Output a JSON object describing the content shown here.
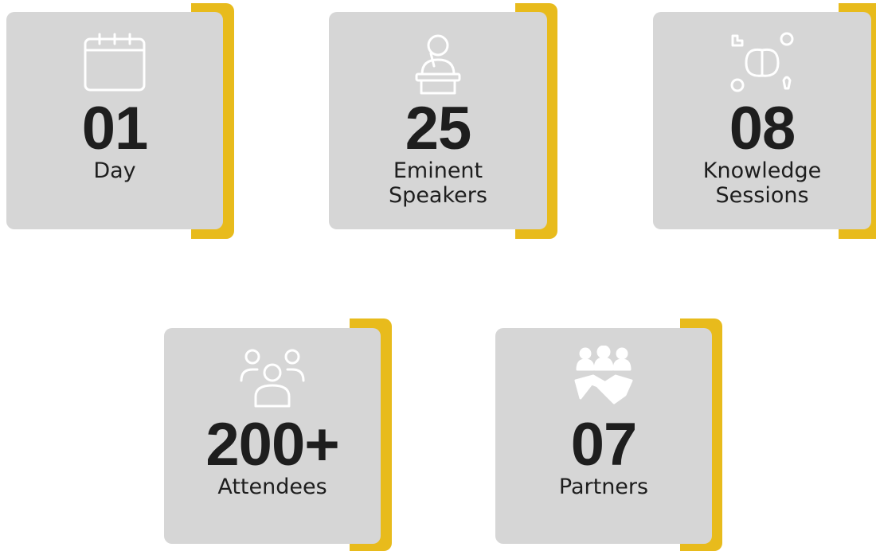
{
  "stats": [
    {
      "value": "01",
      "label": "Day"
    },
    {
      "value": "25",
      "label": "Eminent Speakers"
    },
    {
      "value": "08",
      "label": "Knowledge Sessions"
    },
    {
      "value": "200+",
      "label": "Attendees"
    },
    {
      "value": "07",
      "label": "Partners"
    }
  ]
}
